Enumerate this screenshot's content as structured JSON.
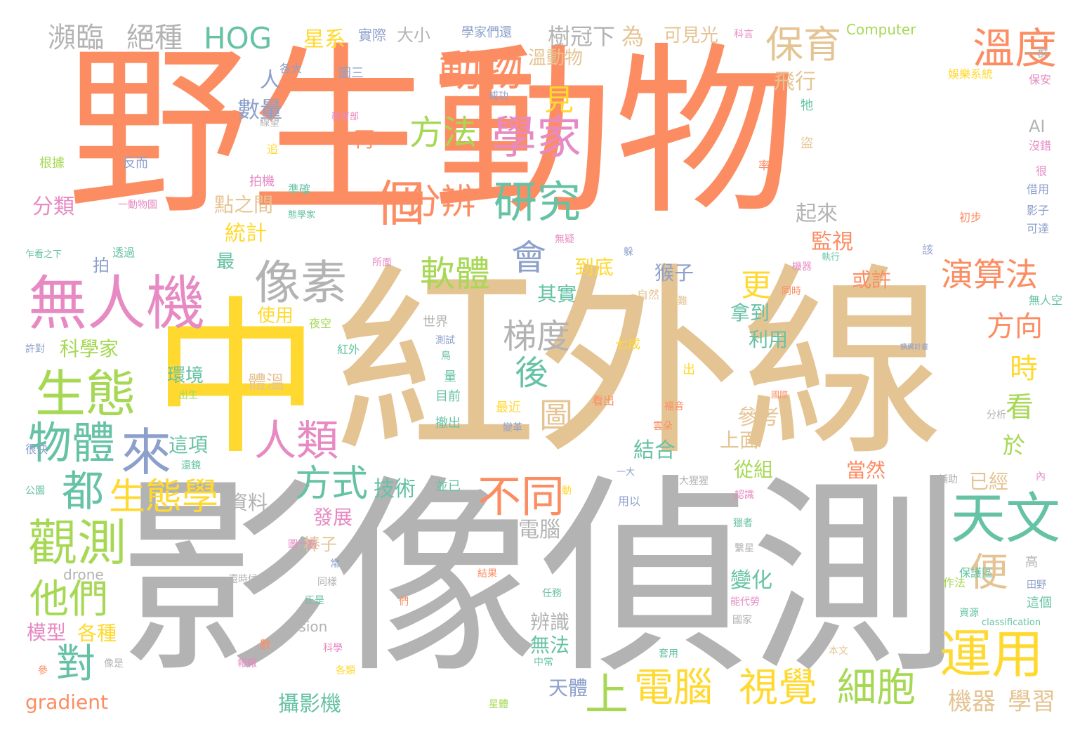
{
  "palette": {
    "orange": "#fc8d62",
    "tan": "#e5c494",
    "gray": "#b3b3b3",
    "yellow": "#ffd92f",
    "pink": "#e78ac3",
    "teal": "#66c2a5",
    "blue": "#8da0cb",
    "green": "#a6d854"
  },
  "words": [
    {
      "text": "野生動物",
      "color": "orange"
    },
    {
      "text": "紅外線",
      "color": "tan"
    },
    {
      "text": "影像偵測",
      "color": "gray"
    },
    {
      "text": "中",
      "color": "yellow"
    },
    {
      "text": "無人機",
      "color": "pink"
    },
    {
      "text": "學家",
      "color": "pink"
    },
    {
      "text": "像素",
      "color": "gray"
    },
    {
      "text": "動物",
      "color": "orange"
    },
    {
      "text": "研究",
      "color": "teal"
    },
    {
      "text": "生態",
      "color": "green"
    },
    {
      "text": "物體",
      "color": "teal"
    },
    {
      "text": "天文",
      "color": "teal"
    },
    {
      "text": "觀測",
      "color": "green"
    },
    {
      "text": "運用",
      "color": "yellow"
    },
    {
      "text": "一個",
      "color": "orange"
    },
    {
      "text": "溫度",
      "color": "orange"
    },
    {
      "text": "保育",
      "color": "tan"
    },
    {
      "text": "來",
      "color": "blue"
    },
    {
      "text": "人類",
      "color": "pink"
    },
    {
      "text": "都",
      "color": "teal"
    },
    {
      "text": "生態學",
      "color": "yellow"
    },
    {
      "text": "不同",
      "color": "orange"
    },
    {
      "text": "方式",
      "color": "teal"
    },
    {
      "text": "他們",
      "color": "green"
    },
    {
      "text": "對",
      "color": "teal"
    },
    {
      "text": "電腦",
      "color": "yellow"
    },
    {
      "text": "視覺",
      "color": "yellow"
    },
    {
      "text": "細胞",
      "color": "green"
    },
    {
      "text": "上",
      "color": "green"
    },
    {
      "text": "便",
      "color": "tan"
    },
    {
      "text": "分辨",
      "color": "orange"
    },
    {
      "text": "方法",
      "color": "green"
    },
    {
      "text": "軟體",
      "color": "green"
    },
    {
      "text": "會",
      "color": "blue"
    },
    {
      "text": "梯度",
      "color": "gray"
    },
    {
      "text": "後",
      "color": "teal"
    },
    {
      "text": "圖",
      "color": "tan"
    },
    {
      "text": "演算法",
      "color": "orange"
    },
    {
      "text": "HOG",
      "color": "teal"
    },
    {
      "text": "瀕臨",
      "color": "gray"
    },
    {
      "text": "絕種",
      "color": "gray"
    },
    {
      "text": "見",
      "color": "yellow"
    },
    {
      "text": "更",
      "color": "yellow"
    },
    {
      "text": "方向",
      "color": "orange"
    },
    {
      "text": "時",
      "color": "yellow"
    },
    {
      "text": "看",
      "color": "green"
    },
    {
      "text": "機器",
      "color": "tan"
    },
    {
      "text": "學習",
      "color": "tan"
    },
    {
      "text": "星系",
      "color": "yellow"
    },
    {
      "text": "樹冠下",
      "color": "gray"
    },
    {
      "text": "為",
      "color": "tan"
    },
    {
      "text": "可見光",
      "color": "tan"
    },
    {
      "text": "溫動物",
      "color": "tan"
    },
    {
      "text": "飛行",
      "color": "tan"
    },
    {
      "text": "數量",
      "color": "blue"
    },
    {
      "text": "人",
      "color": "blue"
    },
    {
      "text": "再",
      "color": "orange"
    },
    {
      "text": "分類",
      "color": "pink"
    },
    {
      "text": "點之間",
      "color": "tan"
    },
    {
      "text": "統計",
      "color": "yellow"
    },
    {
      "text": "起來",
      "color": "gray"
    },
    {
      "text": "監視",
      "color": "orange"
    },
    {
      "text": "到底",
      "color": "yellow"
    },
    {
      "text": "其實",
      "color": "teal"
    },
    {
      "text": "猴子",
      "color": "blue"
    },
    {
      "text": "或許",
      "color": "orange"
    },
    {
      "text": "拿到",
      "color": "teal"
    },
    {
      "text": "利用",
      "color": "teal"
    },
    {
      "text": "最",
      "color": "teal"
    },
    {
      "text": "拍",
      "color": "blue"
    },
    {
      "text": "使用",
      "color": "yellow"
    },
    {
      "text": "科學家",
      "color": "green"
    },
    {
      "text": "環境",
      "color": "teal"
    },
    {
      "text": "體溫",
      "color": "tan"
    },
    {
      "text": "這項",
      "color": "teal"
    },
    {
      "text": "結合",
      "color": "teal"
    },
    {
      "text": "參考",
      "color": "tan"
    },
    {
      "text": "上面",
      "color": "tan"
    },
    {
      "text": "從組",
      "color": "green"
    },
    {
      "text": "當然",
      "color": "orange"
    },
    {
      "text": "已經",
      "color": "tan"
    },
    {
      "text": "於",
      "color": "green"
    },
    {
      "text": "資料",
      "color": "gray"
    },
    {
      "text": "技術",
      "color": "teal"
    },
    {
      "text": "發展",
      "color": "pink"
    },
    {
      "text": "棒子",
      "color": "tan"
    },
    {
      "text": "電腦",
      "color": "gray"
    },
    {
      "text": "變化",
      "color": "teal"
    },
    {
      "text": "辨識",
      "color": "gray"
    },
    {
      "text": "無法",
      "color": "teal"
    },
    {
      "text": "天體",
      "color": "blue"
    },
    {
      "text": "攝影機",
      "color": "teal"
    },
    {
      "text": "模型",
      "color": "pink"
    },
    {
      "text": "各種",
      "color": "yellow"
    },
    {
      "text": "gradient",
      "color": "orange"
    },
    {
      "text": "vision",
      "color": "gray"
    },
    {
      "text": "drone",
      "color": "gray"
    },
    {
      "text": "AI",
      "color": "gray"
    },
    {
      "text": "Computer",
      "color": "green"
    },
    {
      "text": "classification",
      "color": "teal"
    },
    {
      "text": "實際",
      "color": "blue"
    },
    {
      "text": "大小",
      "color": "gray"
    },
    {
      "text": "學家們還",
      "color": "blue"
    },
    {
      "text": "科言",
      "color": "pink"
    },
    {
      "text": "一群",
      "color": "gray"
    },
    {
      "text": "娛樂系統",
      "color": "yellow"
    },
    {
      "text": "保安",
      "color": "pink"
    },
    {
      "text": "圖三",
      "color": "blue"
    },
    {
      "text": "各大",
      "color": "blue"
    },
    {
      "text": "成功",
      "color": "blue"
    },
    {
      "text": "教育部",
      "color": "pink"
    },
    {
      "text": "牠",
      "color": "teal"
    },
    {
      "text": "盜",
      "color": "tan"
    },
    {
      "text": "線望",
      "color": "gray"
    },
    {
      "text": "追",
      "color": "yellow"
    },
    {
      "text": "根據",
      "color": "green"
    },
    {
      "text": "反而",
      "color": "blue"
    },
    {
      "text": "率",
      "color": "orange"
    },
    {
      "text": "沒錯",
      "color": "pink"
    },
    {
      "text": "很",
      "color": "pink"
    },
    {
      "text": "借用",
      "color": "blue"
    },
    {
      "text": "影子",
      "color": "blue"
    },
    {
      "text": "可達",
      "color": "blue"
    },
    {
      "text": "拍機",
      "color": "pink"
    },
    {
      "text": "準確",
      "color": "teal"
    },
    {
      "text": "態學家",
      "color": "teal"
    },
    {
      "text": "一動物園",
      "color": "pink"
    },
    {
      "text": "初步",
      "color": "orange"
    },
    {
      "text": "乍看之下",
      "color": "teal"
    },
    {
      "text": "透過",
      "color": "teal"
    },
    {
      "text": "無疑",
      "color": "pink"
    },
    {
      "text": "躲",
      "color": "blue"
    },
    {
      "text": "該",
      "color": "blue"
    },
    {
      "text": "所面",
      "color": "pink"
    },
    {
      "text": "機器",
      "color": "pink"
    },
    {
      "text": "執行",
      "color": "teal"
    },
    {
      "text": "同時",
      "color": "orange"
    },
    {
      "text": "無人空",
      "color": "teal"
    },
    {
      "text": "自然",
      "color": "tan"
    },
    {
      "text": "難",
      "color": "tan"
    },
    {
      "text": "世界",
      "color": "gray"
    },
    {
      "text": "夜空",
      "color": "green"
    },
    {
      "text": "許對",
      "color": "blue"
    },
    {
      "text": "紅外",
      "color": "teal"
    },
    {
      "text": "測試",
      "color": "blue"
    },
    {
      "text": "鳥",
      "color": "teal"
    },
    {
      "text": "七成",
      "color": "yellow"
    },
    {
      "text": "擴廣計畫",
      "color": "blue"
    },
    {
      "text": "出",
      "color": "yellow"
    },
    {
      "text": "量",
      "color": "teal"
    },
    {
      "text": "目前",
      "color": "teal"
    },
    {
      "text": "最近",
      "color": "yellow"
    },
    {
      "text": "看出",
      "color": "orange"
    },
    {
      "text": "國際",
      "color": "orange"
    },
    {
      "text": "福音",
      "color": "orange"
    },
    {
      "text": "出生",
      "color": "green"
    },
    {
      "text": "撤出",
      "color": "teal"
    },
    {
      "text": "變革",
      "color": "blue"
    },
    {
      "text": "雲朵",
      "color": "orange"
    },
    {
      "text": "分析",
      "color": "gray"
    },
    {
      "text": "很快",
      "color": "blue"
    },
    {
      "text": "還鏡",
      "color": "teal"
    },
    {
      "text": "公園",
      "color": "teal"
    },
    {
      "text": "並已",
      "color": "teal"
    },
    {
      "text": "動",
      "color": "yellow"
    },
    {
      "text": "一大",
      "color": "blue"
    },
    {
      "text": "大猩猩",
      "color": "gray"
    },
    {
      "text": "用以",
      "color": "blue"
    },
    {
      "text": "認識",
      "color": "pink"
    },
    {
      "text": "輔助",
      "color": "gray"
    },
    {
      "text": "內",
      "color": "pink"
    },
    {
      "text": "獵者",
      "color": "teal"
    },
    {
      "text": "圖一右",
      "color": "pink"
    },
    {
      "text": "常",
      "color": "blue"
    },
    {
      "text": "繫星",
      "color": "gray"
    },
    {
      "text": "保護區",
      "color": "teal"
    },
    {
      "text": "高",
      "color": "gray"
    },
    {
      "text": "田野",
      "color": "blue"
    },
    {
      "text": "這個",
      "color": "teal"
    },
    {
      "text": "還時候",
      "color": "gray"
    },
    {
      "text": "同樣",
      "color": "gray"
    },
    {
      "text": "結果",
      "color": "orange"
    },
    {
      "text": "任務",
      "color": "teal"
    },
    {
      "text": "能代勞",
      "color": "pink"
    },
    {
      "text": "作法",
      "color": "green"
    },
    {
      "text": "正是",
      "color": "teal"
    },
    {
      "text": "們",
      "color": "orange"
    },
    {
      "text": "國家",
      "color": "gray"
    },
    {
      "text": "資源",
      "color": "teal"
    },
    {
      "text": "數",
      "color": "orange"
    },
    {
      "text": "科學",
      "color": "pink"
    },
    {
      "text": "中常",
      "color": "teal"
    },
    {
      "text": "套用",
      "color": "teal"
    },
    {
      "text": "本文",
      "color": "tan"
    },
    {
      "text": "參",
      "color": "orange"
    },
    {
      "text": "報報",
      "color": "pink"
    },
    {
      "text": "像是",
      "color": "gray"
    },
    {
      "text": "各類",
      "color": "yellow"
    },
    {
      "text": "星體",
      "color": "green"
    }
  ]
}
